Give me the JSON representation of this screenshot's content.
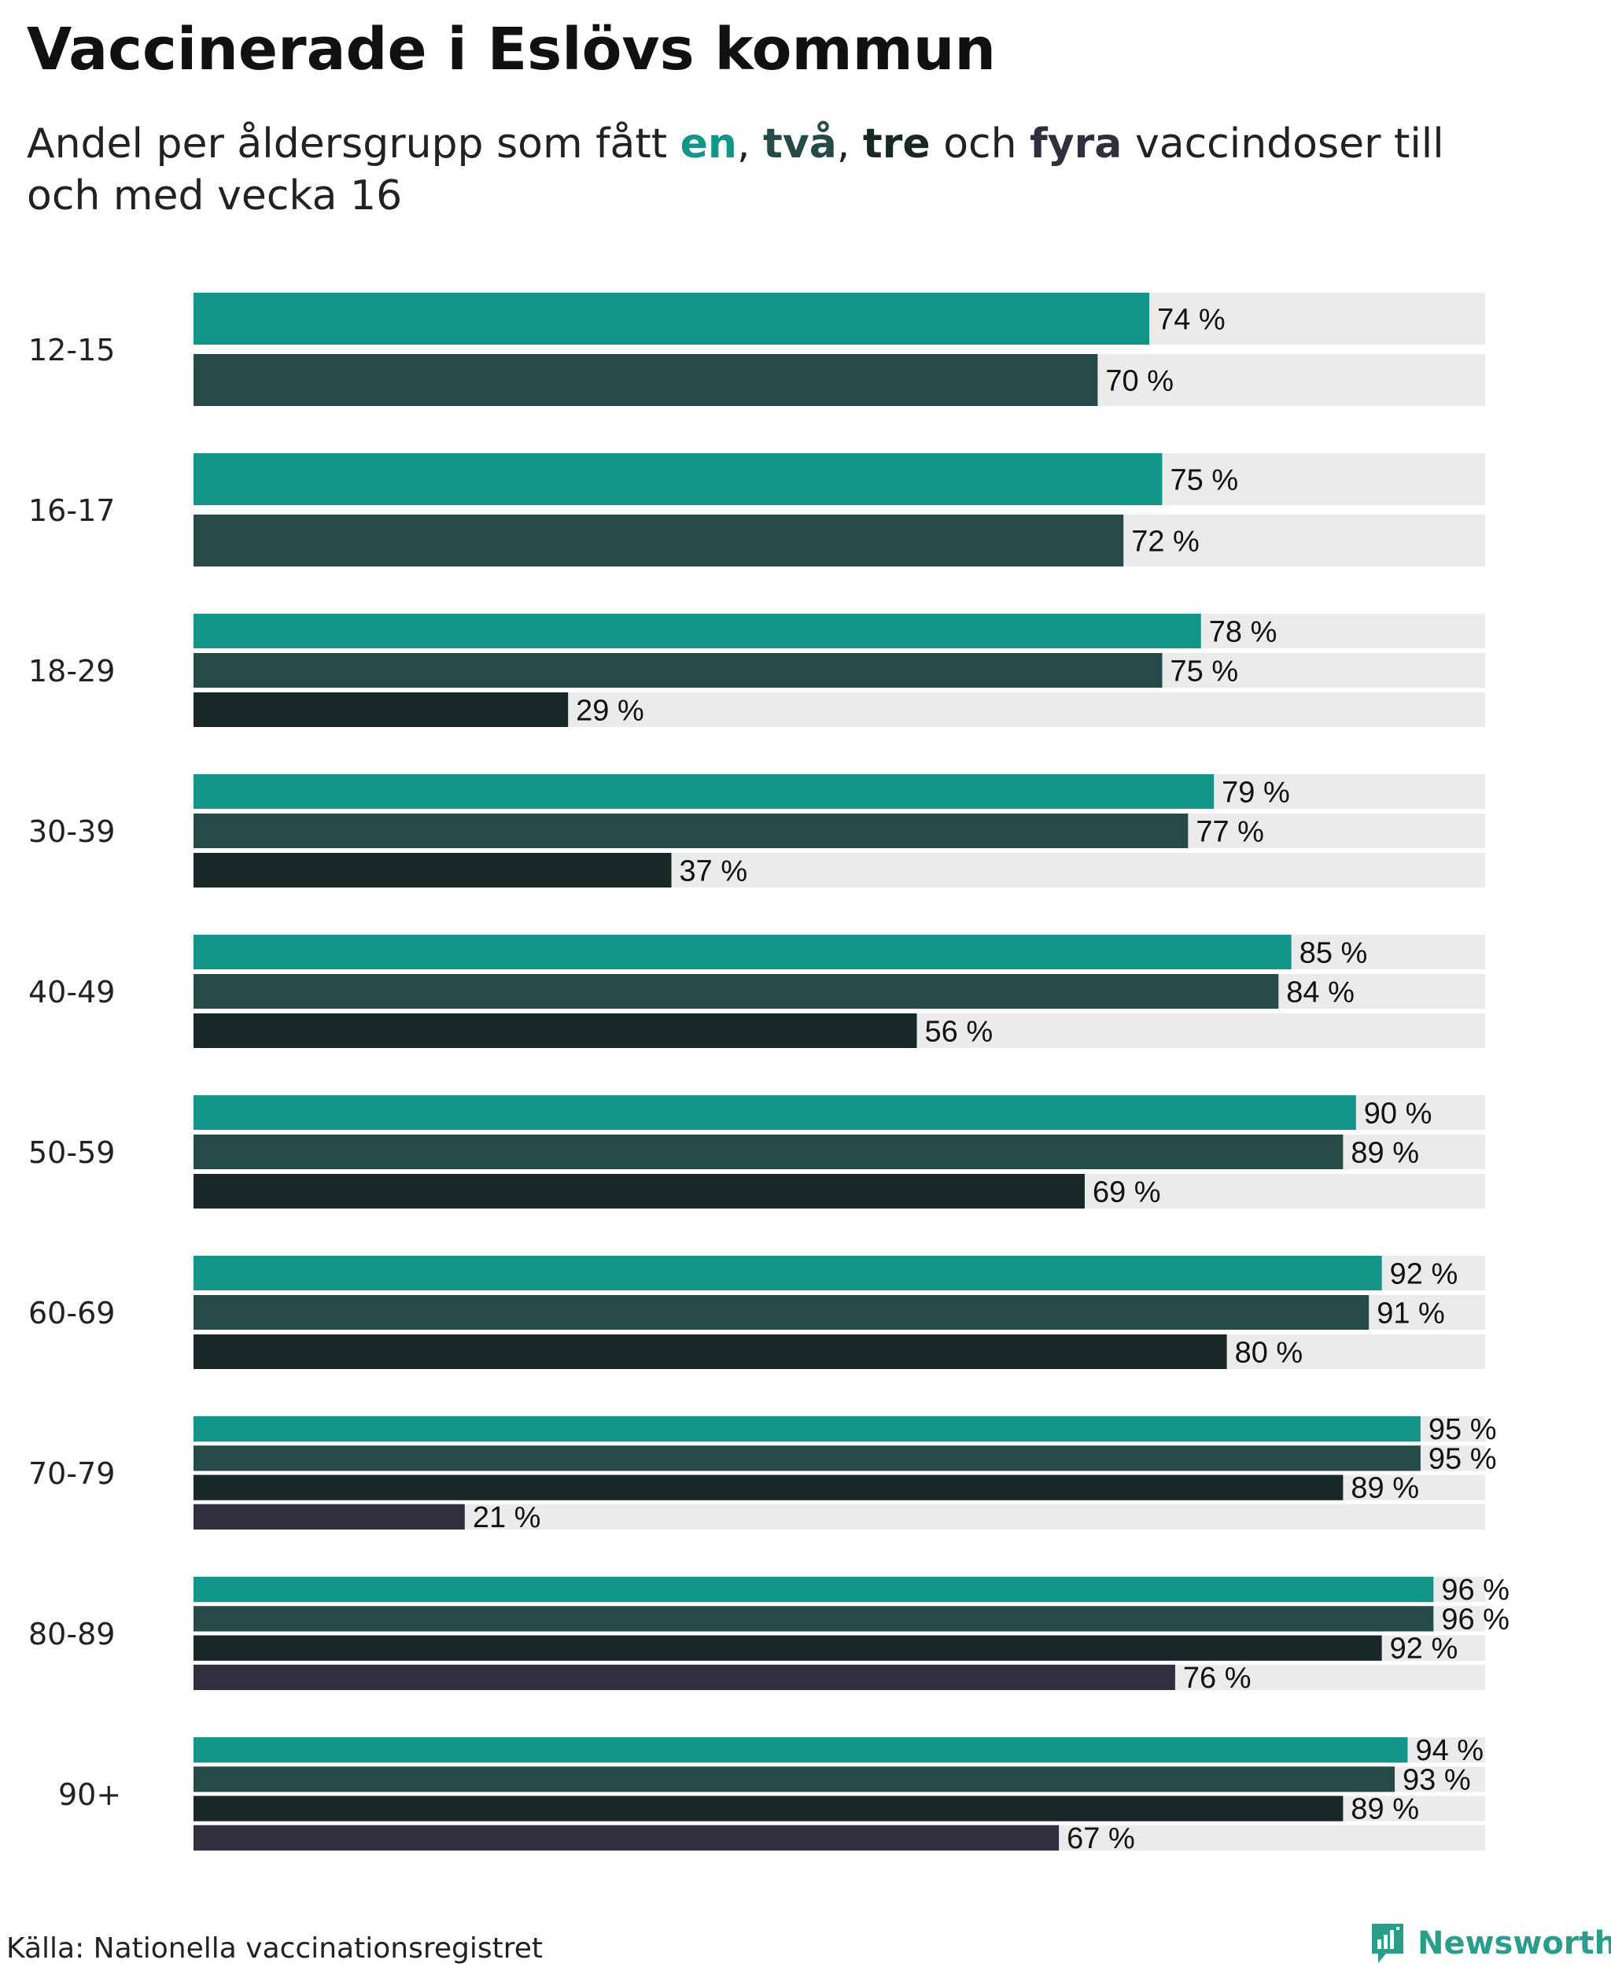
{
  "header": {
    "title": "Vaccinerade i Eslövs kommun",
    "subtitle_before": "Andel per åldersgrupp som fått",
    "kw1": "en",
    "sep1": ",",
    "kw2": "två",
    "sep2": ",",
    "kw3": "tre",
    "kw_and": "och",
    "kw4": "fyra",
    "subtitle_after": "vaccindoser till och med vecka 16"
  },
  "footer": {
    "source": "Källa: Nationella vaccinationsregistret",
    "brand": "Newsworthy"
  },
  "colors": {
    "one_dose": "#14958a",
    "two_doses": "#264a48",
    "three_doses": "#182826",
    "four_doses": "#2f2f3d",
    "track": "#ebebeb",
    "brand": "#2a9d8b"
  },
  "chart_data": {
    "type": "bar",
    "orientation": "horizontal",
    "title": "Vaccinerade i Eslövs kommun",
    "subtitle": "Andel per åldersgrupp som fått en, två, tre och fyra vaccindoser till och med vecka 16",
    "value_suffix": " %",
    "xlim": [
      0,
      100
    ],
    "legend_position": "inline in subtitle",
    "categories": [
      "12-15",
      "16-17",
      "18-29",
      "30-39",
      "40-49",
      "50-59",
      "60-69",
      "70-79",
      "80-89",
      "90+"
    ],
    "series": [
      {
        "name": "en",
        "values": [
          74,
          75,
          78,
          79,
          85,
          90,
          92,
          95,
          96,
          94
        ]
      },
      {
        "name": "två",
        "values": [
          70,
          72,
          75,
          77,
          84,
          89,
          91,
          95,
          96,
          93
        ]
      },
      {
        "name": "tre",
        "values": [
          null,
          null,
          29,
          37,
          56,
          69,
          80,
          89,
          92,
          89
        ]
      },
      {
        "name": "fyra",
        "values": [
          null,
          null,
          null,
          null,
          null,
          null,
          null,
          21,
          76,
          67
        ]
      }
    ]
  }
}
